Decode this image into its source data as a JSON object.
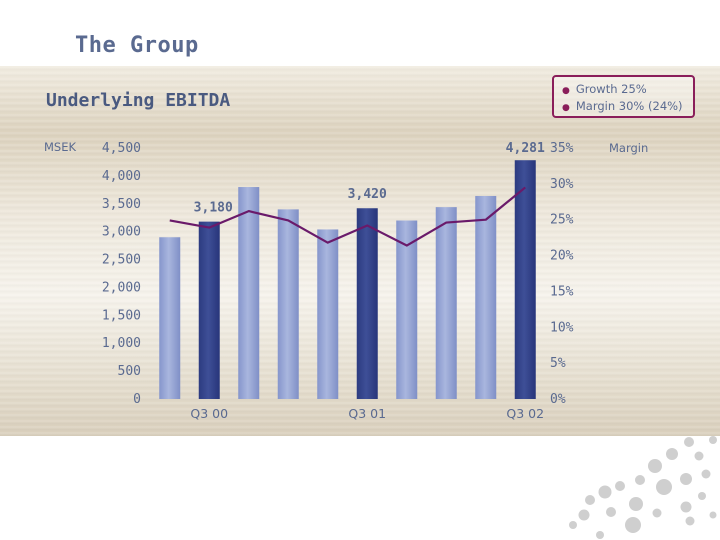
{
  "header": {
    "title": "The Group"
  },
  "slide": {
    "chart_title": "Underlying EBITDA"
  },
  "legend": {
    "items": [
      "Growth 25%",
      "Margin 30% (24%)"
    ]
  },
  "colors": {
    "bar_light": "#a9b6de",
    "bar_dark": "#3e4f97",
    "margin_line": "#6a1a6a",
    "axis_text": "#5a6a90",
    "accent": "#8a1e5a"
  },
  "chart_data": {
    "type": "bar",
    "categories": [
      "",
      "Q3 00",
      "",
      "",
      "",
      "Q3 01",
      "",
      "",
      "",
      "Q3 02"
    ],
    "series": [
      {
        "values": [
          2900,
          3180,
          3800,
          3400,
          3040,
          3420,
          3200,
          3440,
          3640,
          4281
        ],
        "highlight": [
          false,
          true,
          false,
          false,
          false,
          true,
          false,
          false,
          false,
          true
        ]
      },
      {
        "name": "Margin",
        "axis": "right",
        "values": [
          24.9,
          23.9,
          26.2,
          24.9,
          21.8,
          24.2,
          21.4,
          24.6,
          25.0,
          29.5
        ]
      }
    ],
    "data_labels": [
      {
        "index": 1,
        "text": "3,180"
      },
      {
        "index": 5,
        "text": "3,420"
      },
      {
        "index": 9,
        "text": "4,281"
      }
    ],
    "y_left": {
      "label": "MSEK",
      "min": 0,
      "max": 4500,
      "ticks": [
        "0",
        "500",
        "1,000",
        "1,500",
        "2,000",
        "2,500",
        "3,000",
        "3,500",
        "4,000",
        "4,500"
      ]
    },
    "y_right": {
      "min": 0,
      "max": 35,
      "ticks": [
        "0%",
        "5%",
        "10%",
        "15%",
        "20%",
        "25%",
        "30%",
        "35%"
      ]
    },
    "grid": false
  }
}
